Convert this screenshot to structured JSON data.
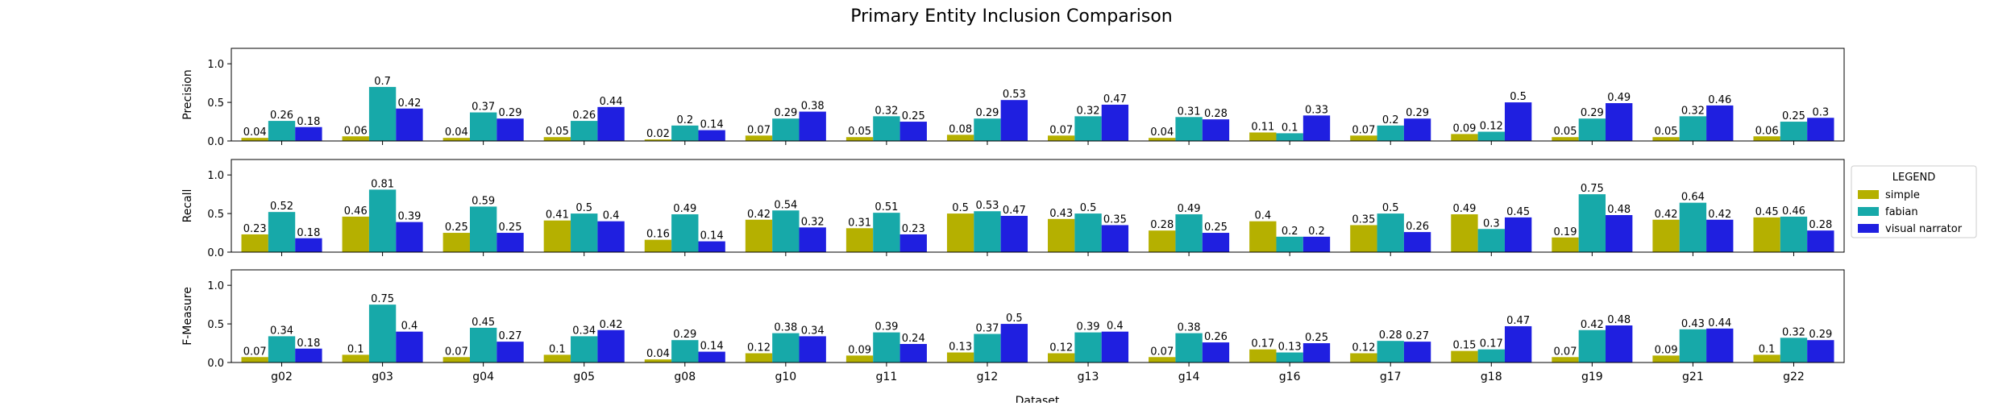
{
  "chart_data": {
    "type": "bar",
    "title": "Primary Entity Inclusion Comparison",
    "xlabel": "Dataset",
    "categories": [
      "g02",
      "g03",
      "g04",
      "g05",
      "g08",
      "g10",
      "g11",
      "g12",
      "g13",
      "g14",
      "g16",
      "g17",
      "g18",
      "g19",
      "g21",
      "g22"
    ],
    "ylim": [
      0,
      1.2
    ],
    "yticks": [
      "0.0",
      "0.5",
      "1.0"
    ],
    "grid": false,
    "legend": {
      "title": "LEGEND",
      "placement": "right"
    },
    "series_meta": [
      {
        "name": "simple",
        "color": "#b5b000"
      },
      {
        "name": "fabian",
        "color": "#17a9a9"
      },
      {
        "name": "visual narrator",
        "color": "#1f1fe0"
      }
    ],
    "panels": [
      {
        "ylabel": "Precision",
        "series": [
          {
            "name": "simple",
            "values": [
              0.04,
              0.06,
              0.04,
              0.05,
              0.02,
              0.07,
              0.05,
              0.08,
              0.07,
              0.04,
              0.11,
              0.07,
              0.09,
              0.05,
              0.05,
              0.06
            ]
          },
          {
            "name": "fabian",
            "values": [
              0.26,
              0.7,
              0.37,
              0.26,
              0.2,
              0.29,
              0.32,
              0.29,
              0.32,
              0.31,
              0.1,
              0.2,
              0.12,
              0.29,
              0.32,
              0.25
            ]
          },
          {
            "name": "visual narrator",
            "values": [
              0.18,
              0.42,
              0.29,
              0.44,
              0.14,
              0.38,
              0.25,
              0.53,
              0.47,
              0.28,
              0.33,
              0.29,
              0.5,
              0.49,
              0.46,
              0.3
            ]
          }
        ]
      },
      {
        "ylabel": "Recall",
        "series": [
          {
            "name": "simple",
            "values": [
              0.23,
              0.46,
              0.25,
              0.41,
              0.16,
              0.42,
              0.31,
              0.5,
              0.43,
              0.28,
              0.4,
              0.35,
              0.49,
              0.19,
              0.42,
              0.45
            ]
          },
          {
            "name": "fabian",
            "values": [
              0.52,
              0.81,
              0.59,
              0.5,
              0.49,
              0.54,
              0.51,
              0.53,
              0.5,
              0.49,
              0.2,
              0.5,
              0.3,
              0.75,
              0.64,
              0.46
            ]
          },
          {
            "name": "visual narrator",
            "values": [
              0.18,
              0.39,
              0.25,
              0.4,
              0.14,
              0.32,
              0.23,
              0.47,
              0.35,
              0.25,
              0.2,
              0.26,
              0.45,
              0.48,
              0.42,
              0.28
            ]
          }
        ]
      },
      {
        "ylabel": "F-Measure",
        "series": [
          {
            "name": "simple",
            "values": [
              0.07,
              0.1,
              0.07,
              0.1,
              0.04,
              0.12,
              0.09,
              0.13,
              0.12,
              0.07,
              0.17,
              0.12,
              0.15,
              0.07,
              0.09,
              0.1
            ]
          },
          {
            "name": "fabian",
            "values": [
              0.34,
              0.75,
              0.45,
              0.34,
              0.29,
              0.38,
              0.39,
              0.37,
              0.39,
              0.38,
              0.13,
              0.28,
              0.17,
              0.42,
              0.43,
              0.32
            ]
          },
          {
            "name": "visual narrator",
            "values": [
              0.18,
              0.4,
              0.27,
              0.42,
              0.14,
              0.34,
              0.24,
              0.5,
              0.4,
              0.26,
              0.25,
              0.27,
              0.47,
              0.48,
              0.44,
              0.29
            ]
          }
        ]
      }
    ]
  }
}
